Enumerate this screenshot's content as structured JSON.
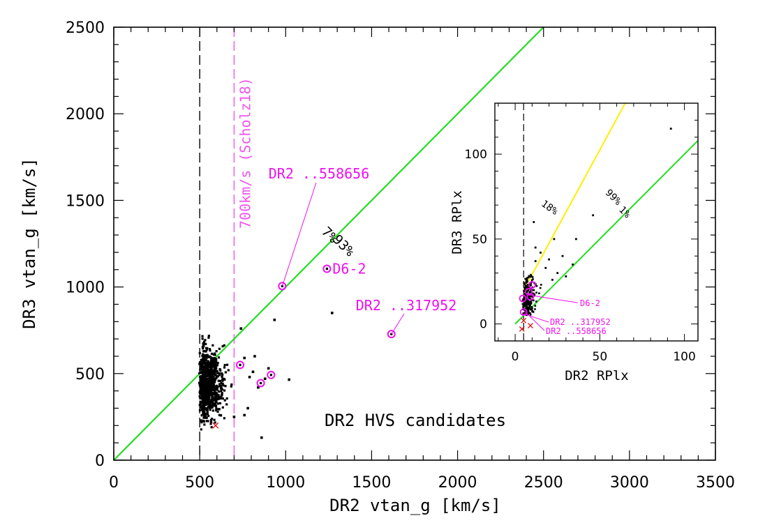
{
  "chart_data": [
    {
      "type": "scatter",
      "name": "main",
      "title": "DR2 HVS candidates",
      "xlabel": "DR2 vtan_g [km/s]",
      "ylabel": "DR3 vtan_g [km/s]",
      "xlim": [
        0,
        3500
      ],
      "ylim": [
        0,
        2500
      ],
      "xticks": [
        0,
        500,
        1000,
        1500,
        2000,
        2500,
        3000,
        3500
      ],
      "yticks": [
        0,
        500,
        1000,
        1500,
        2000,
        2500
      ],
      "vlines": [
        {
          "x": 500,
          "color": "#000000",
          "style": "dashed"
        },
        {
          "x": 700,
          "color": "#ee55ee",
          "style": "dashed",
          "label": "700km/s (Scholz18)"
        }
      ],
      "one_to_one_line": {
        "color": "#22dd22",
        "label_below": "7%",
        "label_above": "93%"
      },
      "highlighted": [
        {
          "x": 980,
          "y": 1005,
          "label": "DR2 ..558656"
        },
        {
          "x": 1240,
          "y": 1105,
          "label": "D6-2"
        },
        {
          "x": 1615,
          "y": 728,
          "label": "DR2 ..317952"
        },
        {
          "x": 735,
          "y": 550,
          "label": ""
        },
        {
          "x": 855,
          "y": 445,
          "label": ""
        },
        {
          "x": 915,
          "y": 492,
          "label": ""
        }
      ],
      "crosses": [
        {
          "x": 592,
          "y": 200
        }
      ],
      "isolated_points": [
        {
          "x": 1270,
          "y": 850
        },
        {
          "x": 1020,
          "y": 465
        },
        {
          "x": 935,
          "y": 810
        },
        {
          "x": 860,
          "y": 130
        },
        {
          "x": 760,
          "y": 590
        },
        {
          "x": 790,
          "y": 480
        },
        {
          "x": 810,
          "y": 510
        },
        {
          "x": 820,
          "y": 600
        },
        {
          "x": 740,
          "y": 760
        },
        {
          "x": 780,
          "y": 300
        },
        {
          "x": 700,
          "y": 250
        },
        {
          "x": 840,
          "y": 420
        },
        {
          "x": 880,
          "y": 470
        },
        {
          "x": 900,
          "y": 530
        },
        {
          "x": 760,
          "y": 260
        }
      ],
      "cluster": {
        "x_range": [
          495,
          720
        ],
        "y_range": [
          150,
          800
        ],
        "x_peak": 560,
        "y_center": 440,
        "n_points": 900
      }
    },
    {
      "type": "scatter",
      "name": "inset",
      "xlabel": "DR2 RPlx",
      "ylabel": "DR3 RPlx",
      "xlim": [
        -12,
        108
      ],
      "ylim": [
        -10,
        130
      ],
      "xticks": [
        0,
        50,
        100
      ],
      "yticks": [
        0,
        50,
        100
      ],
      "vline": {
        "x": 5,
        "color": "#000000",
        "style": "dashed"
      },
      "one_to_one_line": {
        "color": "#22dd22",
        "label_below": "1%",
        "label_above": "99%"
      },
      "second_line": {
        "color": "#ffee00",
        "label": "18%",
        "slope": 2.0
      },
      "highlighted": [
        {
          "x": 10,
          "y": 23
        },
        {
          "x": 8,
          "y": 19
        },
        {
          "x": 9,
          "y": 16
        },
        {
          "x": 4.5,
          "y": 15
        },
        {
          "x": 5,
          "y": 7
        }
      ],
      "annotations": [
        {
          "x": 8,
          "y": 17,
          "label": "D6-2"
        },
        {
          "x": 5,
          "y": 6,
          "label": "DR2 ..317952"
        },
        {
          "x": 5,
          "y": 8,
          "label": "DR2 ..558656"
        }
      ],
      "crosses": [
        {
          "x": 5,
          "y": 2
        },
        {
          "x": 9,
          "y": -1
        },
        {
          "x": 4,
          "y": -3
        }
      ],
      "isolated_points": [
        {
          "x": 92,
          "y": 115
        },
        {
          "x": 46,
          "y": 64
        },
        {
          "x": 36,
          "y": 50
        },
        {
          "x": 34,
          "y": 35
        },
        {
          "x": 11,
          "y": 60
        },
        {
          "x": 12,
          "y": 45
        },
        {
          "x": 23,
          "y": 50
        },
        {
          "x": 28,
          "y": 40
        },
        {
          "x": 20,
          "y": 38
        },
        {
          "x": 18,
          "y": 33
        },
        {
          "x": 25,
          "y": 30
        },
        {
          "x": 15,
          "y": 42
        },
        {
          "x": 30,
          "y": 28
        },
        {
          "x": 12,
          "y": 37
        },
        {
          "x": 22,
          "y": 26
        }
      ],
      "cluster": {
        "x_range": [
          4,
          16
        ],
        "y_range": [
          5,
          30
        ],
        "n_points": 260
      }
    }
  ]
}
